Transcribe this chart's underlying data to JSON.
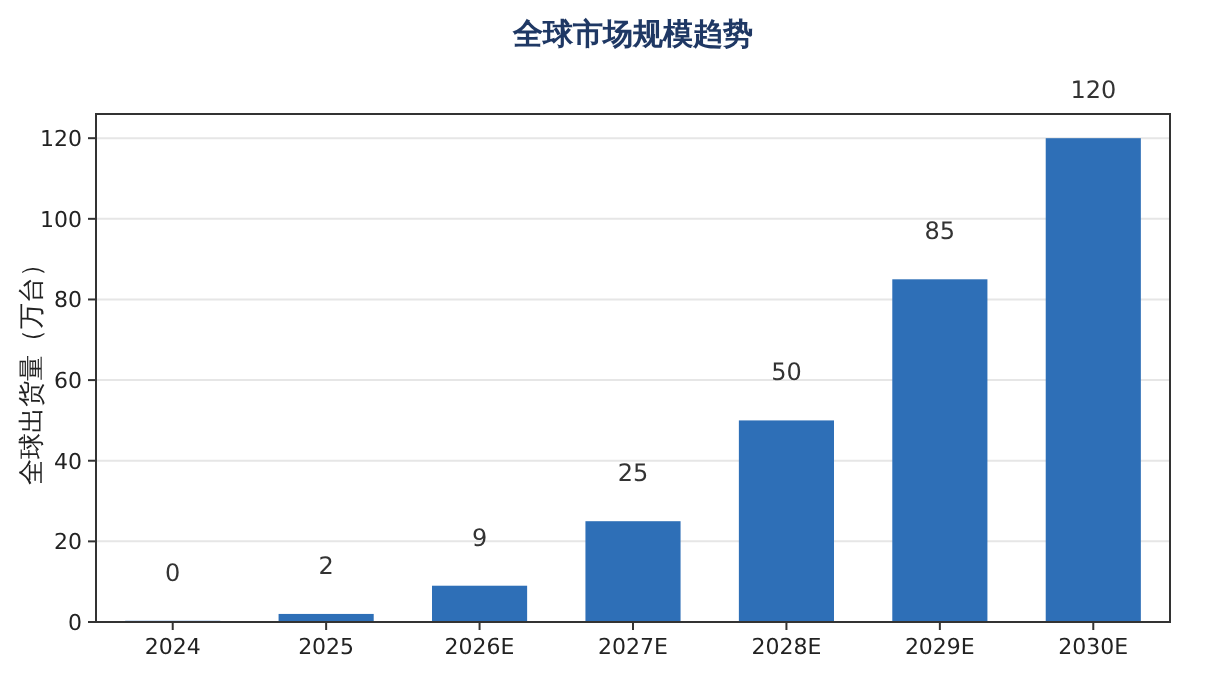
{
  "chart_data": {
    "type": "bar",
    "title": "全球市场规模趋势",
    "ylabel": "全球出货量（万台）",
    "categories": [
      "2024",
      "2025",
      "2026E",
      "2027E",
      "2028E",
      "2029E",
      "2030E"
    ],
    "values": [
      0.3,
      2,
      9,
      25,
      50,
      85,
      120
    ],
    "value_labels": [
      "0",
      "2",
      "9",
      "25",
      "50",
      "85",
      "120"
    ],
    "color": "#2e6fb7",
    "ylim": [
      0,
      126
    ],
    "yticks": [
      0,
      20,
      40,
      60,
      80,
      100,
      120
    ],
    "grid": "y"
  }
}
